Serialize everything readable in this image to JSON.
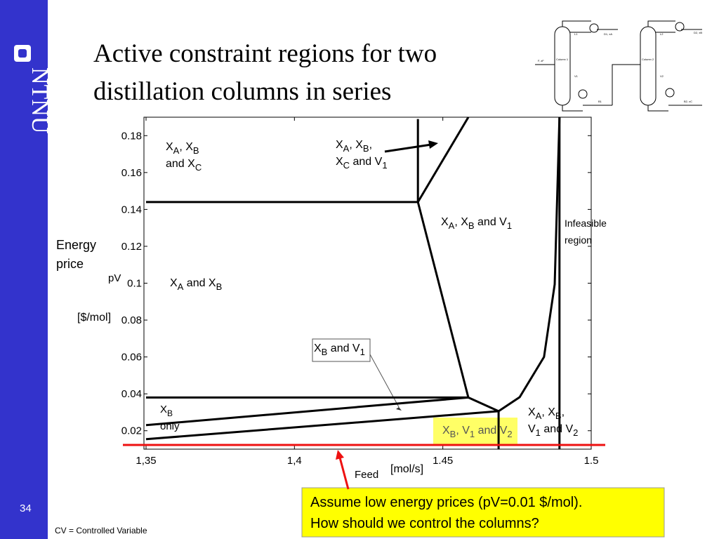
{
  "logo": "NTNU",
  "title": [
    "Active constraint regions for two",
    "distillation columns in series"
  ],
  "flowsheet": {
    "labels": [
      "Column 1",
      "Column 2",
      "F, zF",
      "L1",
      "D1, xA",
      "V1",
      "B1",
      "L2",
      "D2, xB",
      "V2",
      "B2, xC"
    ]
  },
  "chart_data": {
    "type": "line",
    "y_label": [
      "Energy",
      "price"
    ],
    "y_label_symbol": "pV",
    "y_label_unit": "[$/mol]",
    "x_label": "Feed",
    "x_label_unit": "[mol/s]",
    "xlim": [
      1.35,
      1.5
    ],
    "xticks": [
      {
        "value": 1.35,
        "label": "1,35"
      },
      {
        "value": 1.4,
        "label": "1,4"
      },
      1.45,
      1.5
    ],
    "ylim": [
      0.01,
      0.19
    ],
    "yticks": [
      0.02,
      0.04,
      0.06,
      0.08,
      0.1,
      0.12,
      0.14,
      0.16,
      0.18
    ],
    "color": "#000000",
    "lines": [
      {
        "x": [
          1.35,
          1.4416
        ],
        "y": [
          0.144,
          0.144
        ]
      },
      {
        "x": [
          1.4416,
          1.4416
        ],
        "y": [
          0.189,
          0.144
        ]
      },
      {
        "x": [
          1.4416,
          1.4586
        ],
        "y": [
          0.144,
          0.19
        ]
      },
      {
        "x": [
          1.4416,
          1.4586
        ],
        "y": [
          0.144,
          0.038
        ]
      },
      {
        "x": [
          1.35,
          1.4586
        ],
        "y": [
          0.038,
          0.038
        ]
      },
      {
        "x": [
          1.4586,
          1.4688
        ],
        "y": [
          0.038,
          0.0306
        ]
      },
      {
        "x": [
          1.35,
          1.4586
        ],
        "y": [
          0.023,
          0.038
        ]
      },
      {
        "x": [
          1.35,
          1.4688
        ],
        "y": [
          0.0154,
          0.0306
        ]
      },
      {
        "x": [
          1.4688,
          1.4688
        ],
        "y": [
          0.0306,
          0.01
        ]
      },
      {
        "x": [
          1.4688,
          1.4759,
          1.4841,
          1.4877,
          1.4893
        ],
        "y": [
          0.0306,
          0.0382,
          0.06,
          0.0994,
          0.19
        ]
      },
      {
        "x": [
          1.4893,
          1.4893
        ],
        "y": [
          0.19,
          0.01
        ]
      }
    ],
    "reference_line": {
      "value": 0.01,
      "color": "#ee1111"
    },
    "regions": [
      [
        [
          "X",
          "A",
          ", X",
          "B"
        ],
        [
          "and X",
          "C"
        ]
      ],
      [
        [
          "X",
          "A",
          ", X",
          "B",
          ","
        ],
        [
          "X",
          "C",
          " and V",
          "1"
        ]
      ],
      [
        [
          "X",
          "A",
          ", X",
          "B",
          " and V",
          "1"
        ]
      ],
      [
        [
          "Infeasible"
        ],
        [
          "region"
        ]
      ],
      [
        [
          "X",
          "A",
          " and X",
          "B"
        ]
      ],
      [
        [
          "X",
          "B",
          " and V",
          "1"
        ]
      ],
      [
        [
          "X",
          "B"
        ],
        [
          "only"
        ]
      ],
      [
        [
          "X",
          "B",
          ", V",
          "1",
          " and V",
          "2"
        ]
      ],
      [
        [
          "X",
          "A",
          ", X",
          "B",
          ","
        ],
        [
          "V",
          "1",
          " and V",
          "2"
        ]
      ]
    ]
  },
  "callout": [
    "Assume low energy prices (pV=0.01 $/mol).",
    "How should we control the columns?"
  ],
  "page_number": "34",
  "footnote": "CV = Controlled Variable"
}
